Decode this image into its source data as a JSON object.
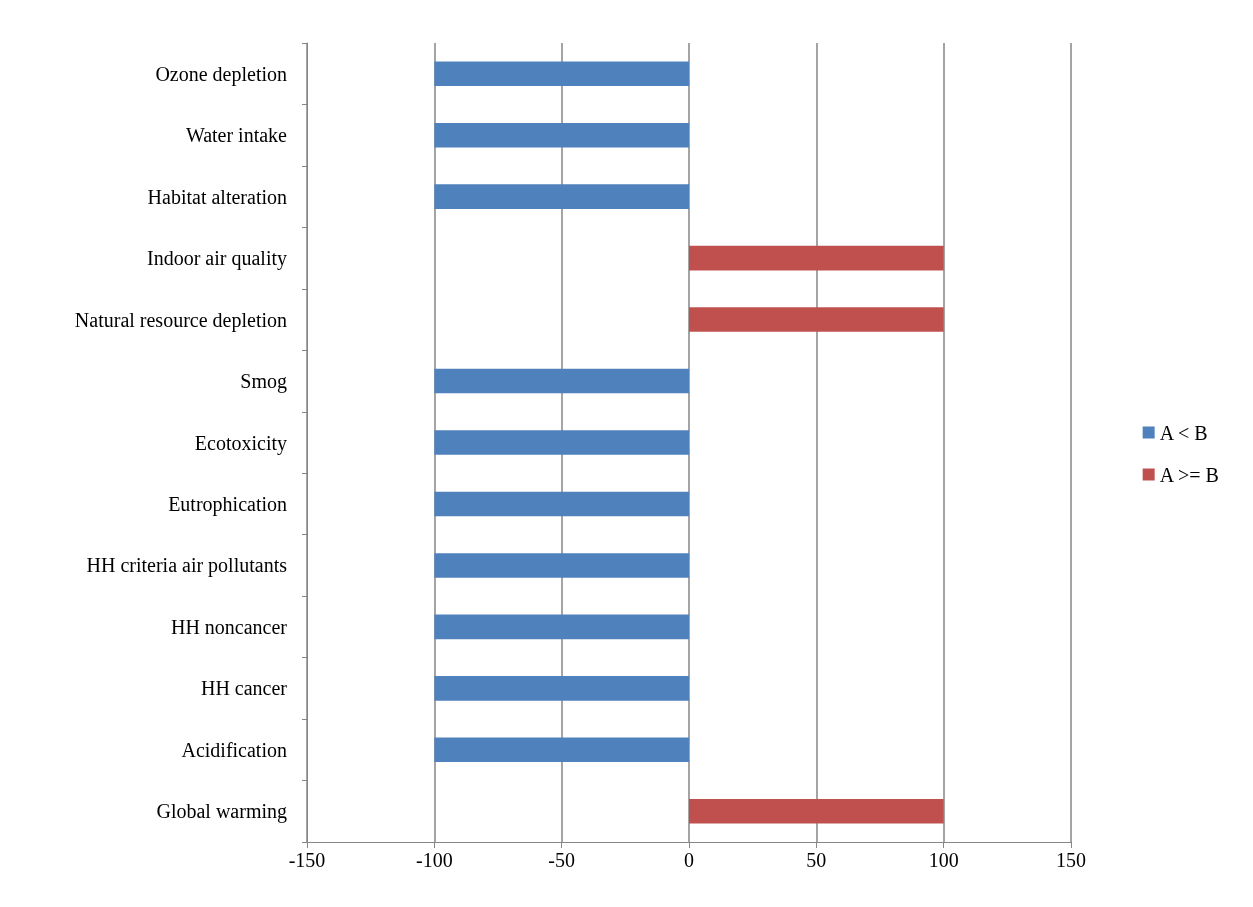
{
  "chart_data": {
    "type": "bar",
    "orientation": "horizontal",
    "stacked": true,
    "categories": [
      "Ozone depletion",
      "Water intake",
      "Habitat alteration",
      "Indoor air quality",
      "Natural resource depletion",
      "Smog",
      "Ecotoxicity",
      "Eutrophication",
      "HH criteria air pollutants",
      "HH noncancer",
      "HH cancer",
      "Acidification",
      "Global warming"
    ],
    "series": [
      {
        "name": "A < B",
        "color": "#4f81bd",
        "values": [
          -100,
          -100,
          -100,
          null,
          null,
          -100,
          -100,
          -100,
          -100,
          -100,
          -100,
          -100,
          null
        ]
      },
      {
        "name": "A >= B",
        "color": "#c0504d",
        "values": [
          null,
          null,
          null,
          100,
          100,
          null,
          null,
          null,
          null,
          null,
          null,
          null,
          100
        ]
      }
    ],
    "xlim": [
      -150,
      150
    ],
    "xticks": [
      -150,
      -100,
      -50,
      0,
      50,
      100,
      150
    ],
    "grid": "x",
    "legend": "right"
  }
}
